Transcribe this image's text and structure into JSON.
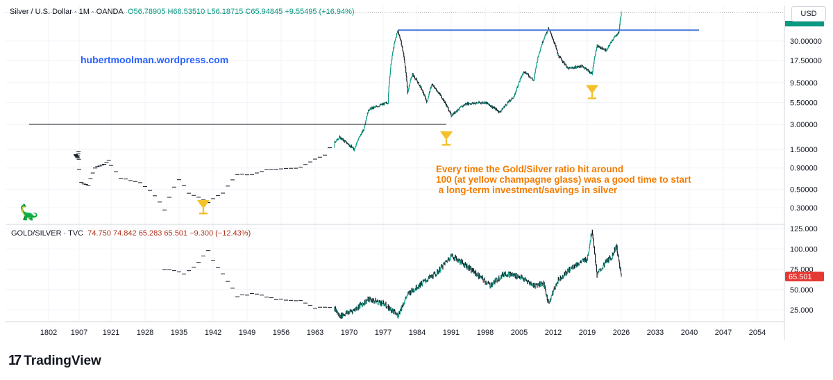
{
  "legend_top": {
    "symbol": "Silver / U.S. Dollar · 1M · OANDA",
    "open": "O56.78905",
    "high": "H66.53510",
    "low": "L56.18715",
    "close": "C65.94845",
    "change": "+9.55495 (+16.94%)"
  },
  "legend_bottom": {
    "symbol": "GOLD/SILVER · TVC",
    "open": "74.750",
    "high": "74.842",
    "low": "65.283",
    "close": "65.501",
    "change": "−9.300 (−12.43%)"
  },
  "currency_button": "USD",
  "watermark": "hubertmoolman.wordpress.com",
  "annotation": "Every time the Gold/Silver ratio hit around\n100 (at yellow champagne glass) was a good time to start\n a long-term investment/savings in silver",
  "brand": "TradingView",
  "brand_logo": "17",
  "colors": {
    "up": "#089981",
    "down": "#131722",
    "blue_line": "#3b6fd4",
    "annotation": "#f57c00",
    "price_tag": "#e53935",
    "glass": "#f4c12a"
  },
  "chart_data": [
    {
      "type": "candlestick",
      "title": "Silver / U.S. Dollar · 1M · OANDA",
      "scale": "log",
      "y_ticks": [
        "30.00000",
        "17.50000",
        "9.50000",
        "5.50000",
        "3.00000",
        "1.50000",
        "0.90000",
        "0.50000",
        "0.30000"
      ],
      "y_tick_values": [
        30,
        17.5,
        9.5,
        5.5,
        3,
        1.5,
        0.9,
        0.5,
        0.3
      ],
      "last_value": 65.94845,
      "x_ticks": [
        "1802",
        "1907",
        "1921",
        "1928",
        "1935",
        "1942",
        "1949",
        "1956",
        "1963",
        "1970",
        "1977",
        "1984",
        "1991",
        "1998",
        "2005",
        "2012",
        "2019",
        "2026",
        "2033",
        "2040",
        "2047",
        "2054"
      ],
      "approx_series": [
        {
          "x": 1895,
          "y": 1.3
        },
        {
          "x": 1902,
          "y": 1.2
        },
        {
          "x": 1905,
          "y": 1.4
        },
        {
          "x": 1908,
          "y": 0.6
        },
        {
          "x": 1911,
          "y": 0.55
        },
        {
          "x": 1914,
          "y": 0.9
        },
        {
          "x": 1918,
          "y": 1.0
        },
        {
          "x": 1920,
          "y": 1.1
        },
        {
          "x": 1923,
          "y": 0.68
        },
        {
          "x": 1927,
          "y": 0.6
        },
        {
          "x": 1930,
          "y": 0.42
        },
        {
          "x": 1932,
          "y": 0.28
        },
        {
          "x": 1935,
          "y": 0.65
        },
        {
          "x": 1937,
          "y": 0.45
        },
        {
          "x": 1941,
          "y": 0.35
        },
        {
          "x": 1944,
          "y": 0.45
        },
        {
          "x": 1947,
          "y": 0.75
        },
        {
          "x": 1950,
          "y": 0.75
        },
        {
          "x": 1953,
          "y": 0.85
        },
        {
          "x": 1960,
          "y": 0.91
        },
        {
          "x": 1965,
          "y": 1.29
        },
        {
          "x": 1968,
          "y": 2.1
        },
        {
          "x": 1971,
          "y": 1.5
        },
        {
          "x": 1973,
          "y": 2.6
        },
        {
          "x": 1974,
          "y": 4.5
        },
        {
          "x": 1978,
          "y": 5.5
        },
        {
          "x": 1980,
          "y": 40
        },
        {
          "x": 1982,
          "y": 7
        },
        {
          "x": 1983,
          "y": 12
        },
        {
          "x": 1986,
          "y": 5.5
        },
        {
          "x": 1987,
          "y": 9
        },
        {
          "x": 1991,
          "y": 3.8
        },
        {
          "x": 1994,
          "y": 5.3
        },
        {
          "x": 1998,
          "y": 5.5
        },
        {
          "x": 2001,
          "y": 4.2
        },
        {
          "x": 2004,
          "y": 6.5
        },
        {
          "x": 2006,
          "y": 13
        },
        {
          "x": 2008,
          "y": 10
        },
        {
          "x": 2011,
          "y": 42
        },
        {
          "x": 2013,
          "y": 20
        },
        {
          "x": 2015,
          "y": 14
        },
        {
          "x": 2018,
          "y": 15
        },
        {
          "x": 2020,
          "y": 12
        },
        {
          "x": 2021,
          "y": 26
        },
        {
          "x": 2023,
          "y": 23
        },
        {
          "x": 2024,
          "y": 30
        },
        {
          "x": 2025.5,
          "y": 38
        },
        {
          "x": 2026,
          "y": 65.9
        }
      ],
      "horizontal_lines": [
        {
          "name": "resistance",
          "y": 40.5,
          "x_from": 1980,
          "x_to": 2042
        },
        {
          "name": "support",
          "y": 3.0,
          "x_from": 1785,
          "x_to": 1990
        }
      ],
      "markers": [
        {
          "name": "champagne-glass",
          "x": 1940,
          "y": 0.3
        },
        {
          "name": "champagne-glass",
          "x": 1990,
          "y": 2.0
        },
        {
          "name": "champagne-glass",
          "x": 2020,
          "y": 7.2
        }
      ]
    },
    {
      "type": "candlestick",
      "title": "GOLD/SILVER · TVC",
      "y_ticks": [
        "125.000",
        "100.000",
        "75.000",
        "50.000",
        "25.000"
      ],
      "y_tick_values": [
        125,
        100,
        75,
        50,
        25
      ],
      "last_value": 65.501,
      "approx_series": [
        {
          "x": 1932,
          "y": 75
        },
        {
          "x": 1936,
          "y": 70
        },
        {
          "x": 1938,
          "y": 78
        },
        {
          "x": 1941,
          "y": 97
        },
        {
          "x": 1942,
          "y": 85
        },
        {
          "x": 1944,
          "y": 70
        },
        {
          "x": 1947,
          "y": 42
        },
        {
          "x": 1951,
          "y": 45
        },
        {
          "x": 1955,
          "y": 38
        },
        {
          "x": 1960,
          "y": 37
        },
        {
          "x": 1963,
          "y": 28
        },
        {
          "x": 1967,
          "y": 27
        },
        {
          "x": 1968,
          "y": 17
        },
        {
          "x": 1971,
          "y": 25
        },
        {
          "x": 1974,
          "y": 38
        },
        {
          "x": 1977,
          "y": 33
        },
        {
          "x": 1980,
          "y": 18
        },
        {
          "x": 1982,
          "y": 44
        },
        {
          "x": 1985,
          "y": 58
        },
        {
          "x": 1988,
          "y": 70
        },
        {
          "x": 1991,
          "y": 92
        },
        {
          "x": 1994,
          "y": 80
        },
        {
          "x": 1997,
          "y": 65
        },
        {
          "x": 1999,
          "y": 55
        },
        {
          "x": 2002,
          "y": 70
        },
        {
          "x": 2005,
          "y": 66
        },
        {
          "x": 2008,
          "y": 55
        },
        {
          "x": 2010,
          "y": 58
        },
        {
          "x": 2011,
          "y": 33
        },
        {
          "x": 2013,
          "y": 62
        },
        {
          "x": 2016,
          "y": 78
        },
        {
          "x": 2019,
          "y": 88
        },
        {
          "x": 2020,
          "y": 124
        },
        {
          "x": 2021,
          "y": 68
        },
        {
          "x": 2023,
          "y": 85
        },
        {
          "x": 2024,
          "y": 90
        },
        {
          "x": 2025,
          "y": 104
        },
        {
          "x": 2026,
          "y": 65.5
        }
      ]
    }
  ]
}
